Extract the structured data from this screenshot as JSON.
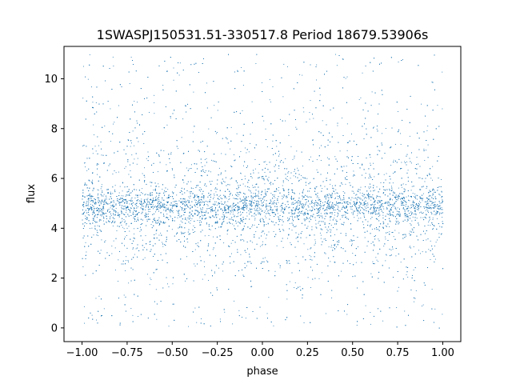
{
  "chart_data": {
    "type": "scatter",
    "title": "1SWASPJ150531.51-330517.8 Period 18679.53906s",
    "xlabel": "phase",
    "ylabel": "flux",
    "xlim": [
      -1.1,
      1.1
    ],
    "ylim": [
      -0.55,
      11.3
    ],
    "xticks": [
      -1.0,
      -0.75,
      -0.5,
      -0.25,
      0.0,
      0.25,
      0.5,
      0.75,
      1.0
    ],
    "xtick_labels": [
      "−1.00",
      "−0.75",
      "−0.50",
      "−0.25",
      "0.00",
      "0.25",
      "0.50",
      "0.75",
      "1.00"
    ],
    "yticks": [
      0,
      2,
      4,
      6,
      8,
      10
    ],
    "ytick_labels": [
      "0",
      "2",
      "4",
      "6",
      "8",
      "10"
    ],
    "grid": false,
    "marker_color": "#1f77b4",
    "x_range": [
      -1.0,
      1.0
    ],
    "y_range": [
      0.0,
      11.0
    ],
    "core_flux": 4.9,
    "core_width": 0.35,
    "dip_phases": [
      -0.55,
      0.45
    ],
    "dip_flux": 3.5
  }
}
